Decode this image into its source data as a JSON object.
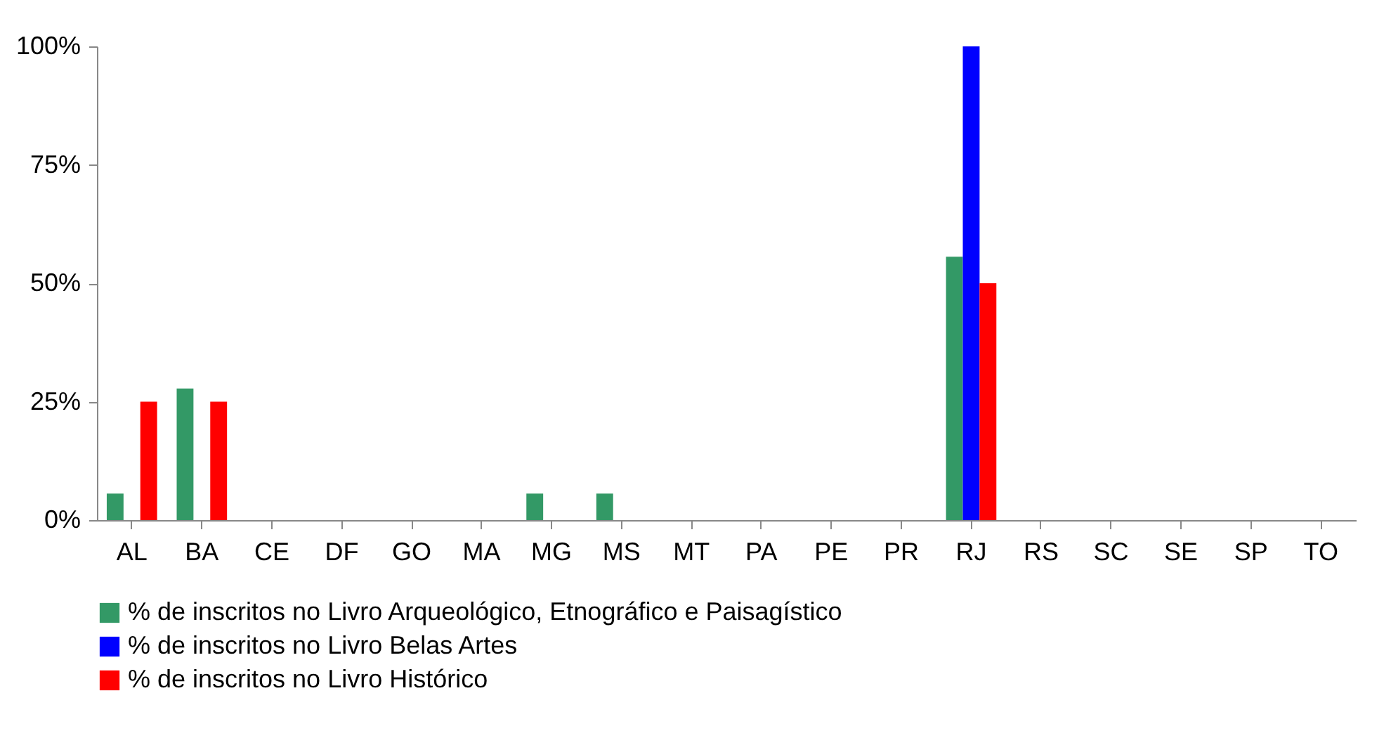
{
  "chart_data": {
    "type": "bar",
    "categories": [
      "AL",
      "BA",
      "CE",
      "DF",
      "GO",
      "MA",
      "MG",
      "MS",
      "MT",
      "PA",
      "PE",
      "PR",
      "RJ",
      "RS",
      "SC",
      "SE",
      "SP",
      "TO"
    ],
    "series": [
      {
        "name": "% de inscritos no Livro Arqueológico, Etnográfico e Paisagístico",
        "color": "#339966",
        "values": [
          5.6,
          27.8,
          0,
          0,
          0,
          0,
          5.6,
          5.6,
          0,
          0,
          0,
          0,
          55.6,
          0,
          0,
          0,
          0,
          0
        ]
      },
      {
        "name": "% de inscritos no Livro Belas Artes",
        "color": "#0000ff",
        "values": [
          0,
          0,
          0,
          0,
          0,
          0,
          0,
          0,
          0,
          0,
          0,
          0,
          100,
          0,
          0,
          0,
          0,
          0
        ]
      },
      {
        "name": "% de inscritos no Livro Histórico",
        "color": "#ff0000",
        "values": [
          25,
          25,
          0,
          0,
          0,
          0,
          0,
          0,
          0,
          0,
          0,
          0,
          50,
          0,
          0,
          0,
          0,
          0
        ]
      }
    ],
    "ylim": [
      0,
      100
    ],
    "yticks": [
      {
        "value": 0,
        "label": "0%"
      },
      {
        "value": 25,
        "label": "25%"
      },
      {
        "value": 50,
        "label": "50%"
      },
      {
        "value": 75,
        "label": "75%"
      },
      {
        "value": 100,
        "label": "100%"
      }
    ],
    "grid": false,
    "legend": "bottom"
  }
}
